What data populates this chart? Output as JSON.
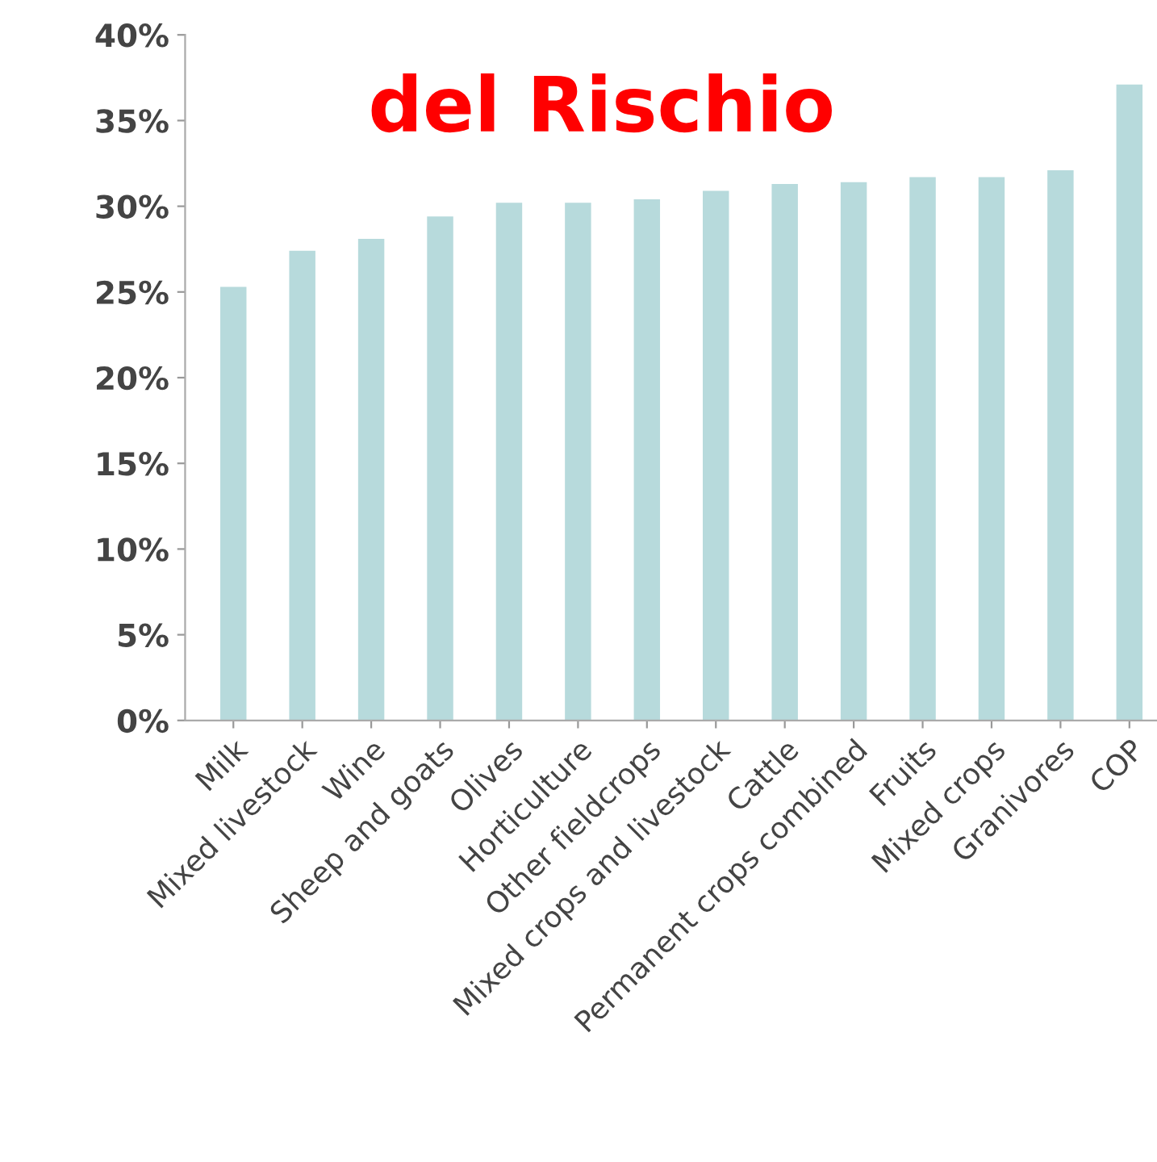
{
  "chart_data": {
    "type": "bar",
    "categories": [
      "Milk",
      "Mixed livestock",
      "Wine",
      "Sheep and goats",
      "Olives",
      "Horticulture",
      "Other fieldcrops",
      "Mixed crops and livestock",
      "Cattle",
      "Permanent crops combined",
      "Fruits",
      "Mixed crops",
      "Granivores",
      "COP"
    ],
    "values": [
      25.3,
      27.4,
      28.1,
      29.4,
      30.2,
      30.2,
      30.4,
      30.9,
      31.3,
      31.4,
      31.7,
      31.7,
      32.1,
      37.1
    ],
    "color": "#b7dadc",
    "ylim": [
      0,
      40
    ],
    "yticks": [
      {
        "value": 0,
        "label": "0%"
      },
      {
        "value": 5,
        "label": "5%"
      },
      {
        "value": 10,
        "label": "10%"
      },
      {
        "value": 15,
        "label": "15%"
      },
      {
        "value": 20,
        "label": "20%"
      },
      {
        "value": 25,
        "label": "25%"
      },
      {
        "value": 30,
        "label": "30%"
      },
      {
        "value": 35,
        "label": "35%"
      },
      {
        "value": 40,
        "label": "40%"
      }
    ],
    "grid": false,
    "annotations": [
      "del Rischio"
    ]
  }
}
